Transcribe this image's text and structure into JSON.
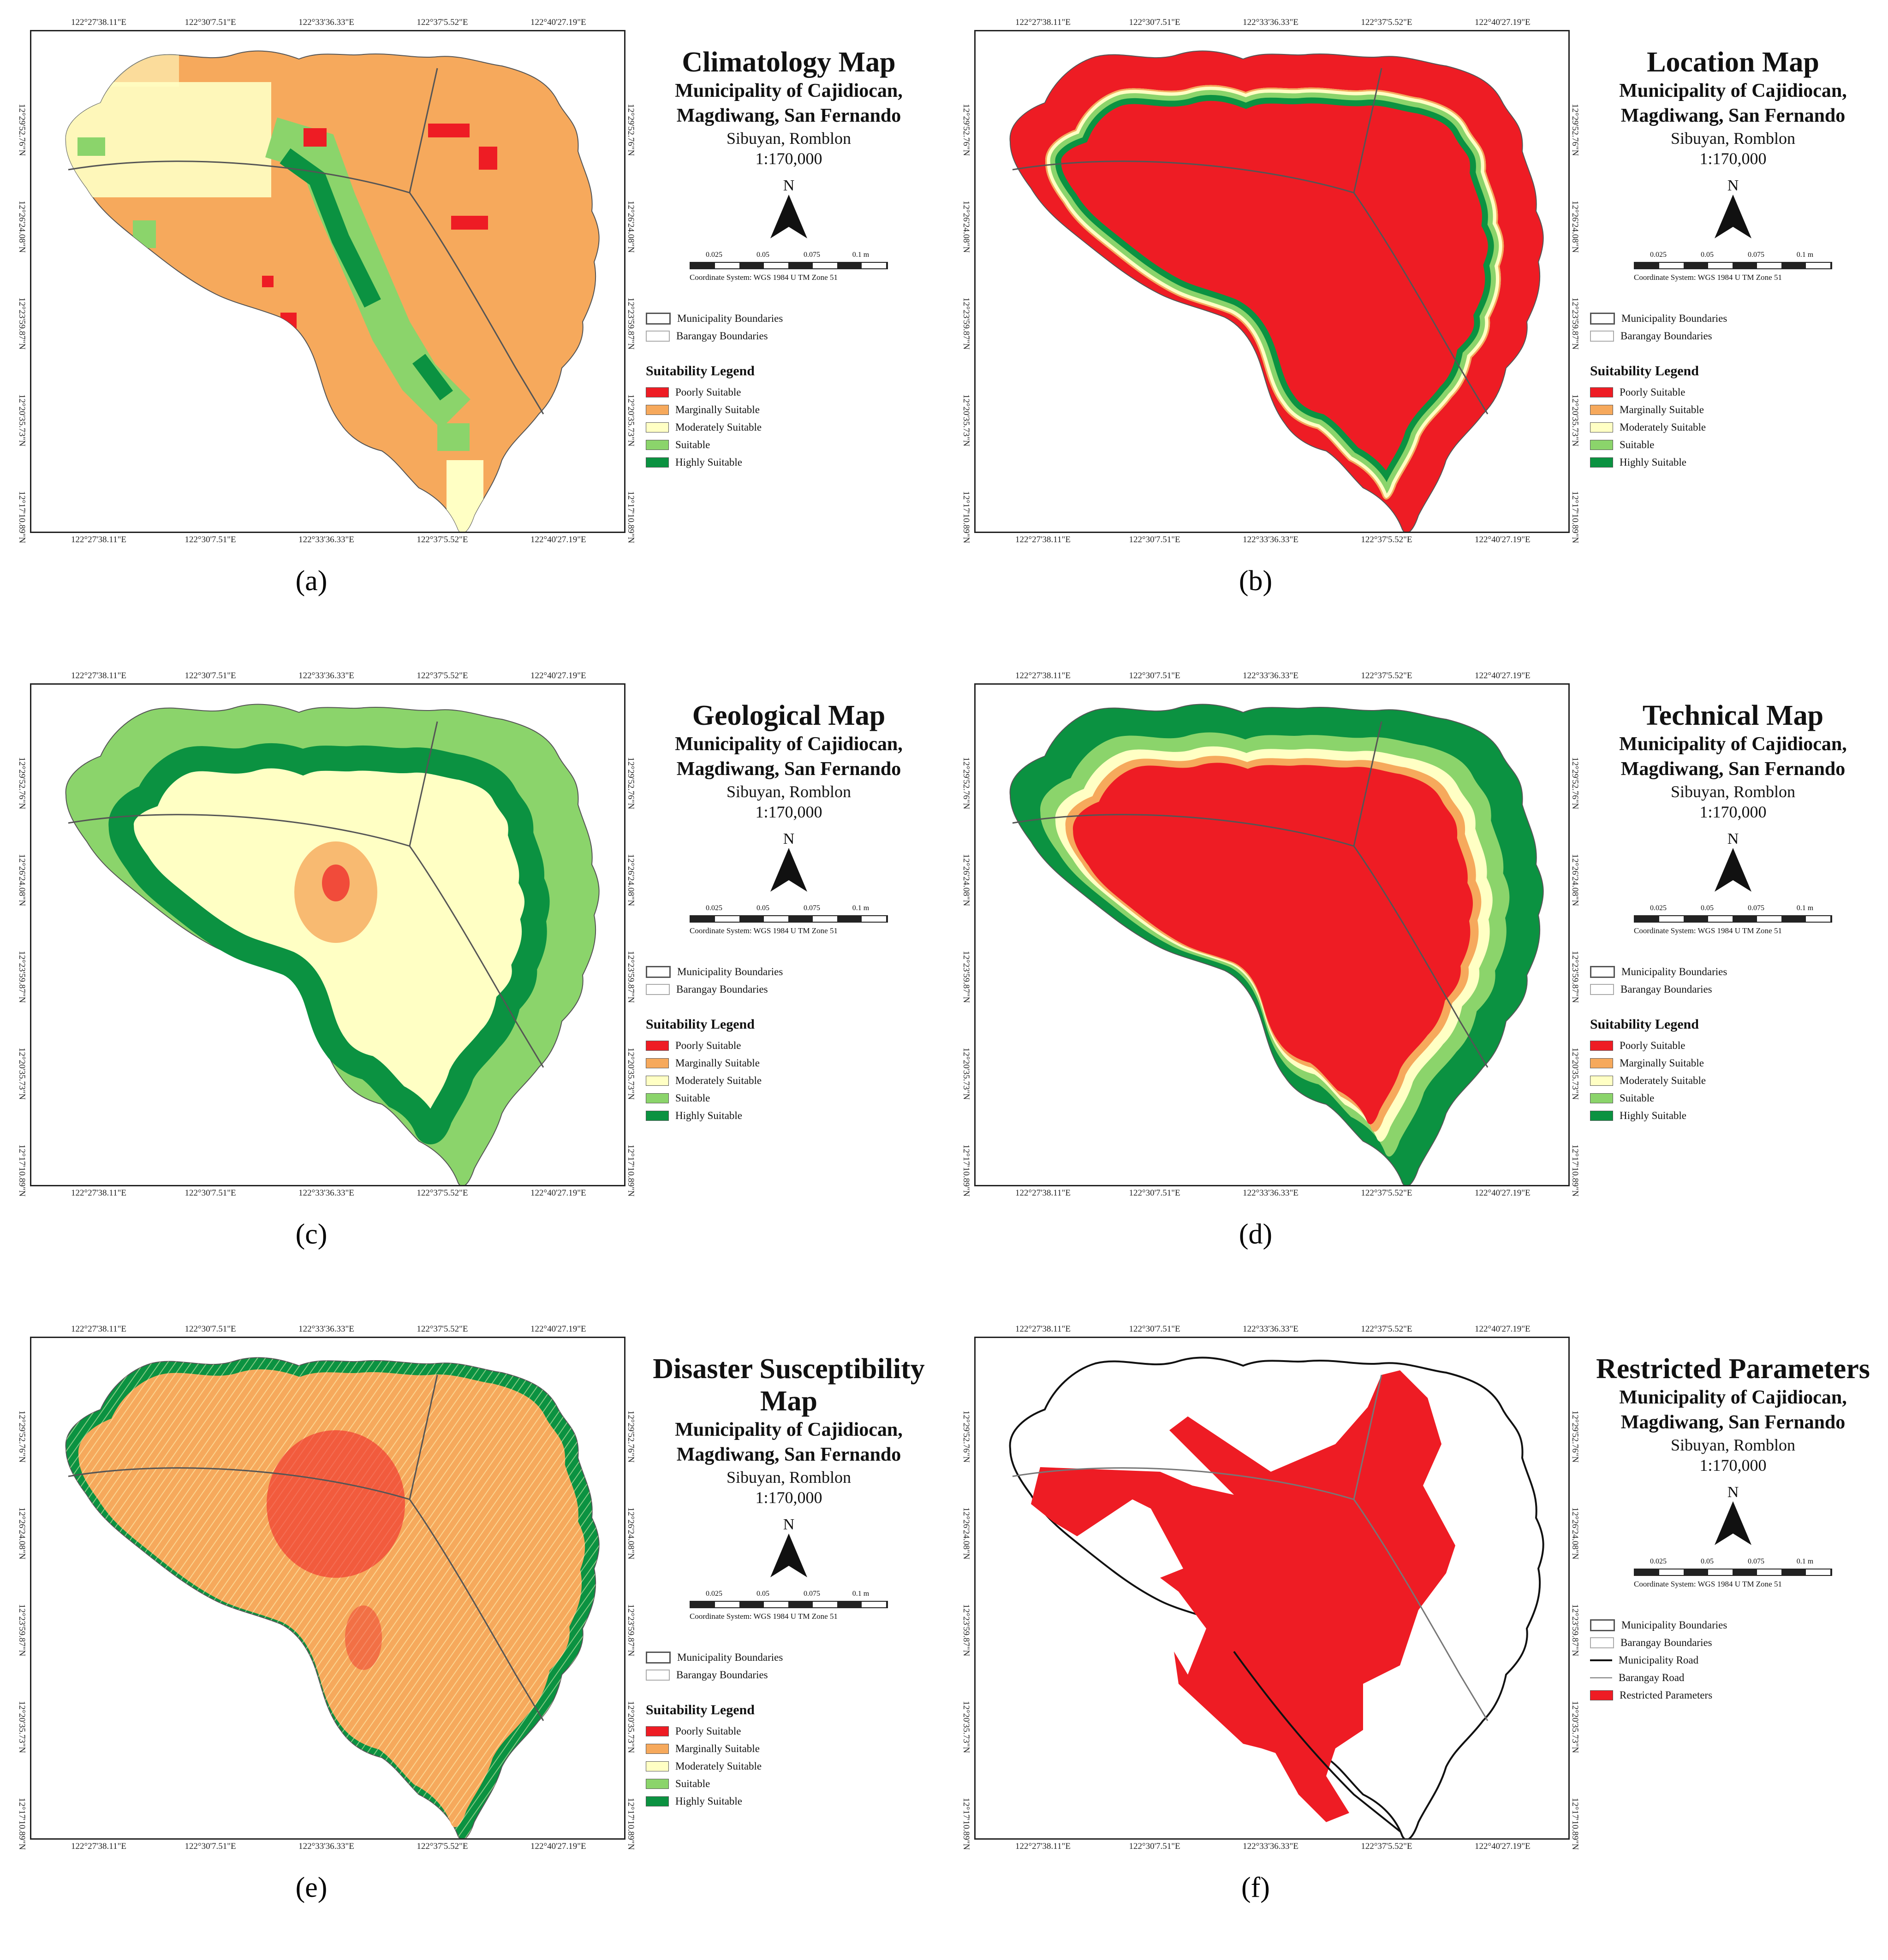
{
  "lon_ticks": [
    "122°27'38.11\"E",
    "122°30'7.51\"E",
    "122°33'36.33\"E",
    "122°37'5.52\"E",
    "122°40'27.19\"E"
  ],
  "lat_ticks": [
    "12°29'52.76\"N",
    "12°26'24.08\"N",
    "12°23'59.87\"N",
    "12°20'35.73\"N",
    "12°17'10.89\"N"
  ],
  "common": {
    "municipality": "Municipality of Cajidiocan,",
    "municipality2": "Magdiwang, San Fernando",
    "province": "Sibuyan, Romblon",
    "scale_text": "1:170,000",
    "north": "N",
    "scale_labels": [
      "0.025",
      "0.05",
      "0.075",
      "0.1 m"
    ],
    "coord_system": "Coordinate System: WGS 1984 U TM Zone 51",
    "boundaries": [
      "Municipality Boundaries",
      "Barangay Boundaries"
    ],
    "suitability_title": "Suitability Legend",
    "suitability": [
      "Poorly Suitable",
      "Marginally Suitable",
      "Moderately Suitable",
      "Suitable",
      "Highly Suitable"
    ],
    "colors": {
      "poor": "#ee1c24",
      "marginal": "#f6a95c",
      "moderate": "#ffffc4",
      "suitable": "#8bd46b",
      "high": "#0b9241"
    }
  },
  "panels": [
    {
      "title": "Climatology Map",
      "label": "(a)"
    },
    {
      "title": "Location Map",
      "label": "(b)"
    },
    {
      "title": "Geological Map",
      "label": "(c)"
    },
    {
      "title": "Technical Map",
      "label": "(d)"
    },
    {
      "title": "Disaster Susceptibility Map",
      "label": "(e)"
    },
    {
      "title": "Restricted Parameters",
      "label": "(f)",
      "extra_legend": [
        "Municipality Boundaries",
        "Barangay Boundaries",
        "Municipality Road",
        "Barangay Road",
        "Restricted Parameters"
      ]
    }
  ]
}
